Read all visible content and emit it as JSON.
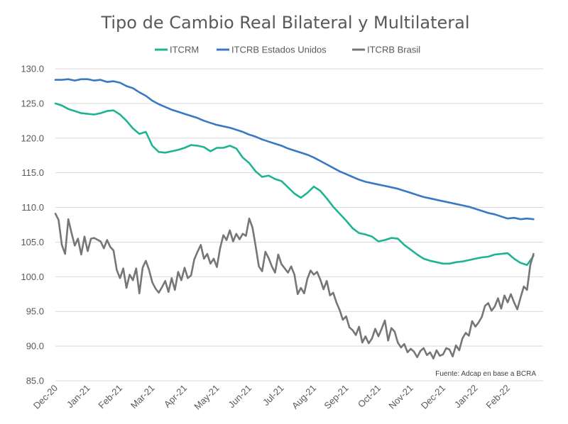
{
  "chart_data": {
    "type": "line",
    "title": "Tipo de Cambio Real Bilateral y Multilateral",
    "source_note": "Fuente: Adcap en base a BCRA",
    "ylim": [
      85,
      130
    ],
    "y_ticks": [
      "130.0",
      "125.0",
      "120.0",
      "115.0",
      "110.0",
      "105.0",
      "100.0",
      "95.0",
      "90.0",
      "85.0"
    ],
    "x_range": [
      0,
      14.8
    ],
    "x_ticks": [
      "Dec-20",
      "Jan-21",
      "Feb-21",
      "Mar-21",
      "Apr-21",
      "May-21",
      "Jun-21",
      "Jul-21",
      "Aug-21",
      "Sep-21",
      "Oct-21",
      "Nov-21",
      "Dec-21",
      "Jan-22",
      "Feb-22"
    ],
    "grid": "horizontal",
    "legend_position": "top",
    "colors": {
      "ITCRM": "#1fb393",
      "ITCRB Estados Unidos": "#3a78c3",
      "ITCRB Brasil": "#767676"
    },
    "series": [
      {
        "name": "ITCRM",
        "points": [
          [
            0,
            125
          ],
          [
            0.2,
            124.7
          ],
          [
            0.4,
            124.2
          ],
          [
            0.6,
            123.9
          ],
          [
            0.8,
            123.6
          ],
          [
            1,
            123.5
          ],
          [
            1.2,
            123.4
          ],
          [
            1.4,
            123.6
          ],
          [
            1.6,
            123.9
          ],
          [
            1.8,
            124
          ],
          [
            2,
            123.4
          ],
          [
            2.2,
            122.5
          ],
          [
            2.4,
            121.4
          ],
          [
            2.6,
            120.6
          ],
          [
            2.8,
            120.9
          ],
          [
            3,
            118.9
          ],
          [
            3.2,
            118
          ],
          [
            3.4,
            117.9
          ],
          [
            3.6,
            118.1
          ],
          [
            3.8,
            118.3
          ],
          [
            4,
            118.6
          ],
          [
            4.2,
            119
          ],
          [
            4.4,
            118.9
          ],
          [
            4.6,
            118.7
          ],
          [
            4.8,
            118.1
          ],
          [
            5,
            118.6
          ],
          [
            5.2,
            118.6
          ],
          [
            5.4,
            118.9
          ],
          [
            5.6,
            118.5
          ],
          [
            5.8,
            117.2
          ],
          [
            6,
            116.4
          ],
          [
            6.2,
            115.2
          ],
          [
            6.4,
            114.4
          ],
          [
            6.6,
            114.6
          ],
          [
            6.8,
            114.1
          ],
          [
            7,
            113.8
          ],
          [
            7.2,
            112.9
          ],
          [
            7.4,
            112
          ],
          [
            7.6,
            111.4
          ],
          [
            7.8,
            112.1
          ],
          [
            8,
            113
          ],
          [
            8.2,
            112.4
          ],
          [
            8.4,
            111.3
          ],
          [
            8.6,
            110.1
          ],
          [
            8.8,
            109.1
          ],
          [
            9,
            108.1
          ],
          [
            9.2,
            107
          ],
          [
            9.4,
            106.3
          ],
          [
            9.6,
            106.1
          ],
          [
            9.8,
            105.8
          ],
          [
            10,
            105.1
          ],
          [
            10.2,
            105.3
          ],
          [
            10.4,
            105.6
          ],
          [
            10.6,
            105.5
          ],
          [
            10.8,
            104.6
          ],
          [
            11,
            103.9
          ],
          [
            11.2,
            103.2
          ],
          [
            11.4,
            102.6
          ],
          [
            11.6,
            102.3
          ],
          [
            11.8,
            102.1
          ],
          [
            12,
            101.9
          ],
          [
            12.2,
            101.9
          ],
          [
            12.4,
            102.1
          ],
          [
            12.6,
            102.2
          ],
          [
            12.8,
            102.4
          ],
          [
            13,
            102.6
          ],
          [
            13.2,
            102.8
          ],
          [
            13.4,
            102.9
          ],
          [
            13.6,
            103.2
          ],
          [
            13.8,
            103.3
          ],
          [
            14,
            103.4
          ],
          [
            14.2,
            102.6
          ],
          [
            14.4,
            102
          ],
          [
            14.6,
            101.7
          ],
          [
            14.8,
            103
          ]
        ]
      },
      {
        "name": "ITCRB Estados Unidos",
        "points": [
          [
            0,
            128.4
          ],
          [
            0.2,
            128.4
          ],
          [
            0.4,
            128.5
          ],
          [
            0.6,
            128.3
          ],
          [
            0.8,
            128.5
          ],
          [
            1,
            128.5
          ],
          [
            1.2,
            128.3
          ],
          [
            1.4,
            128.4
          ],
          [
            1.6,
            128.1
          ],
          [
            1.8,
            128.2
          ],
          [
            2,
            128
          ],
          [
            2.2,
            127.5
          ],
          [
            2.4,
            127.2
          ],
          [
            2.6,
            126.6
          ],
          [
            2.8,
            126.1
          ],
          [
            3,
            125.4
          ],
          [
            3.2,
            124.9
          ],
          [
            3.4,
            124.5
          ],
          [
            3.6,
            124.1
          ],
          [
            3.8,
            123.8
          ],
          [
            4,
            123.5
          ],
          [
            4.2,
            123.2
          ],
          [
            4.4,
            122.9
          ],
          [
            4.6,
            122.5
          ],
          [
            4.8,
            122.2
          ],
          [
            5,
            121.9
          ],
          [
            5.2,
            121.7
          ],
          [
            5.4,
            121.5
          ],
          [
            5.6,
            121.2
          ],
          [
            5.8,
            120.9
          ],
          [
            6,
            120.5
          ],
          [
            6.2,
            120.2
          ],
          [
            6.4,
            119.8
          ],
          [
            6.6,
            119.5
          ],
          [
            6.8,
            119.2
          ],
          [
            7,
            118.9
          ],
          [
            7.2,
            118.5
          ],
          [
            7.4,
            118.2
          ],
          [
            7.6,
            117.9
          ],
          [
            7.8,
            117.6
          ],
          [
            8,
            117.2
          ],
          [
            8.2,
            116.7
          ],
          [
            8.4,
            116.2
          ],
          [
            8.6,
            115.7
          ],
          [
            8.8,
            115.2
          ],
          [
            9,
            114.8
          ],
          [
            9.2,
            114.4
          ],
          [
            9.4,
            114
          ],
          [
            9.6,
            113.7
          ],
          [
            9.8,
            113.5
          ],
          [
            10,
            113.3
          ],
          [
            10.2,
            113.1
          ],
          [
            10.4,
            112.9
          ],
          [
            10.6,
            112.7
          ],
          [
            10.8,
            112.4
          ],
          [
            11,
            112.1
          ],
          [
            11.2,
            111.8
          ],
          [
            11.4,
            111.5
          ],
          [
            11.6,
            111.3
          ],
          [
            11.8,
            111.1
          ],
          [
            12,
            110.9
          ],
          [
            12.2,
            110.7
          ],
          [
            12.4,
            110.5
          ],
          [
            12.6,
            110.3
          ],
          [
            12.8,
            110.1
          ],
          [
            13,
            109.8
          ],
          [
            13.2,
            109.5
          ],
          [
            13.4,
            109.2
          ],
          [
            13.6,
            109
          ],
          [
            13.8,
            108.7
          ],
          [
            14,
            108.4
          ],
          [
            14.2,
            108.5
          ],
          [
            14.4,
            108.3
          ],
          [
            14.6,
            108.4
          ],
          [
            14.8,
            108.3
          ]
        ]
      },
      {
        "name": "ITCRB Brasil",
        "points": [
          [
            0,
            109.1
          ],
          [
            0.1,
            108.2
          ],
          [
            0.2,
            104.6
          ],
          [
            0.3,
            103.3
          ],
          [
            0.4,
            108.3
          ],
          [
            0.5,
            106.3
          ],
          [
            0.6,
            104.5
          ],
          [
            0.7,
            105.5
          ],
          [
            0.8,
            103.2
          ],
          [
            0.9,
            105.8
          ],
          [
            1,
            103.7
          ],
          [
            1.1,
            105.5
          ],
          [
            1.2,
            105.6
          ],
          [
            1.4,
            105.1
          ],
          [
            1.5,
            104.1
          ],
          [
            1.6,
            105.3
          ],
          [
            1.7,
            104.3
          ],
          [
            1.8,
            103.8
          ],
          [
            1.9,
            101
          ],
          [
            2,
            99.8
          ],
          [
            2.1,
            101.2
          ],
          [
            2.2,
            98.4
          ],
          [
            2.3,
            100.3
          ],
          [
            2.4,
            99.5
          ],
          [
            2.5,
            101.2
          ],
          [
            2.6,
            97.6
          ],
          [
            2.7,
            101.3
          ],
          [
            2.8,
            102.3
          ],
          [
            2.9,
            101
          ],
          [
            3,
            99.2
          ],
          [
            3.1,
            98.3
          ],
          [
            3.2,
            97.7
          ],
          [
            3.3,
            98.5
          ],
          [
            3.4,
            99.4
          ],
          [
            3.5,
            97.8
          ],
          [
            3.6,
            99.8
          ],
          [
            3.7,
            98.1
          ],
          [
            3.8,
            100.7
          ],
          [
            3.9,
            99.5
          ],
          [
            4,
            101.3
          ],
          [
            4.1,
            99.8
          ],
          [
            4.2,
            100.2
          ],
          [
            4.3,
            102.5
          ],
          [
            4.4,
            103.6
          ],
          [
            4.5,
            104.6
          ],
          [
            4.6,
            102.6
          ],
          [
            4.7,
            103.3
          ],
          [
            4.8,
            101.9
          ],
          [
            4.9,
            102.6
          ],
          [
            5,
            101.4
          ],
          [
            5.1,
            104.1
          ],
          [
            5.2,
            106
          ],
          [
            5.3,
            105.3
          ],
          [
            5.4,
            106.7
          ],
          [
            5.5,
            105.1
          ],
          [
            5.6,
            106.2
          ],
          [
            5.7,
            105.4
          ],
          [
            5.8,
            106.2
          ],
          [
            5.9,
            105.9
          ],
          [
            6,
            108.4
          ],
          [
            6.1,
            107.1
          ],
          [
            6.2,
            104.4
          ],
          [
            6.3,
            101.5
          ],
          [
            6.4,
            100.8
          ],
          [
            6.5,
            103.6
          ],
          [
            6.6,
            102.7
          ],
          [
            6.7,
            101.5
          ],
          [
            6.8,
            100.6
          ],
          [
            6.9,
            103.2
          ],
          [
            7,
            101.8
          ],
          [
            7.1,
            101.2
          ],
          [
            7.2,
            100.6
          ],
          [
            7.3,
            101.5
          ],
          [
            7.4,
            100.3
          ],
          [
            7.5,
            97.5
          ],
          [
            7.6,
            98.4
          ],
          [
            7.7,
            97.6
          ],
          [
            7.8,
            99.7
          ],
          [
            7.9,
            100.9
          ],
          [
            8,
            100.3
          ],
          [
            8.1,
            100.7
          ],
          [
            8.2,
            99.6
          ],
          [
            8.3,
            98.2
          ],
          [
            8.4,
            99.4
          ],
          [
            8.5,
            97.3
          ],
          [
            8.6,
            97.7
          ],
          [
            8.7,
            96.3
          ],
          [
            8.8,
            95.2
          ],
          [
            8.9,
            93.8
          ],
          [
            9,
            94.3
          ],
          [
            9.1,
            92.7
          ],
          [
            9.2,
            92.3
          ],
          [
            9.3,
            91.6
          ],
          [
            9.4,
            92.8
          ],
          [
            9.5,
            90.5
          ],
          [
            9.6,
            91.4
          ],
          [
            9.7,
            90.4
          ],
          [
            9.8,
            91.1
          ],
          [
            9.9,
            92.5
          ],
          [
            10,
            91.4
          ],
          [
            10.1,
            92.5
          ],
          [
            10.2,
            93.7
          ],
          [
            10.3,
            90.8
          ],
          [
            10.4,
            92.6
          ],
          [
            10.5,
            92.1
          ],
          [
            10.6,
            90.5
          ],
          [
            10.7,
            89.8
          ],
          [
            10.8,
            90.3
          ],
          [
            10.9,
            89.1
          ],
          [
            11,
            89.6
          ],
          [
            11.1,
            89.2
          ],
          [
            11.2,
            88.4
          ],
          [
            11.3,
            89.3
          ],
          [
            11.4,
            89.7
          ],
          [
            11.5,
            88.7
          ],
          [
            11.6,
            89.1
          ],
          [
            11.7,
            88.2
          ],
          [
            11.8,
            89.4
          ],
          [
            11.9,
            88.6
          ],
          [
            12,
            88.8
          ],
          [
            12.1,
            89.7
          ],
          [
            12.2,
            89.5
          ],
          [
            12.3,
            88.5
          ],
          [
            12.4,
            90.1
          ],
          [
            12.5,
            89.4
          ],
          [
            12.6,
            91.1
          ],
          [
            12.7,
            91.9
          ],
          [
            12.8,
            91.5
          ],
          [
            12.9,
            93.6
          ],
          [
            13,
            92.8
          ],
          [
            13.1,
            93.4
          ],
          [
            13.2,
            94.2
          ],
          [
            13.3,
            95.8
          ],
          [
            13.4,
            96.2
          ],
          [
            13.5,
            95.1
          ],
          [
            13.6,
            95.7
          ],
          [
            13.7,
            96.9
          ],
          [
            13.8,
            95.4
          ],
          [
            13.9,
            97.3
          ],
          [
            14,
            96.3
          ],
          [
            14.1,
            97.5
          ],
          [
            14.2,
            96.3
          ],
          [
            14.3,
            95.3
          ],
          [
            14.4,
            97
          ],
          [
            14.5,
            98.6
          ],
          [
            14.6,
            98.1
          ],
          [
            14.7,
            101.7
          ],
          [
            14.8,
            103.3
          ]
        ]
      }
    ]
  }
}
